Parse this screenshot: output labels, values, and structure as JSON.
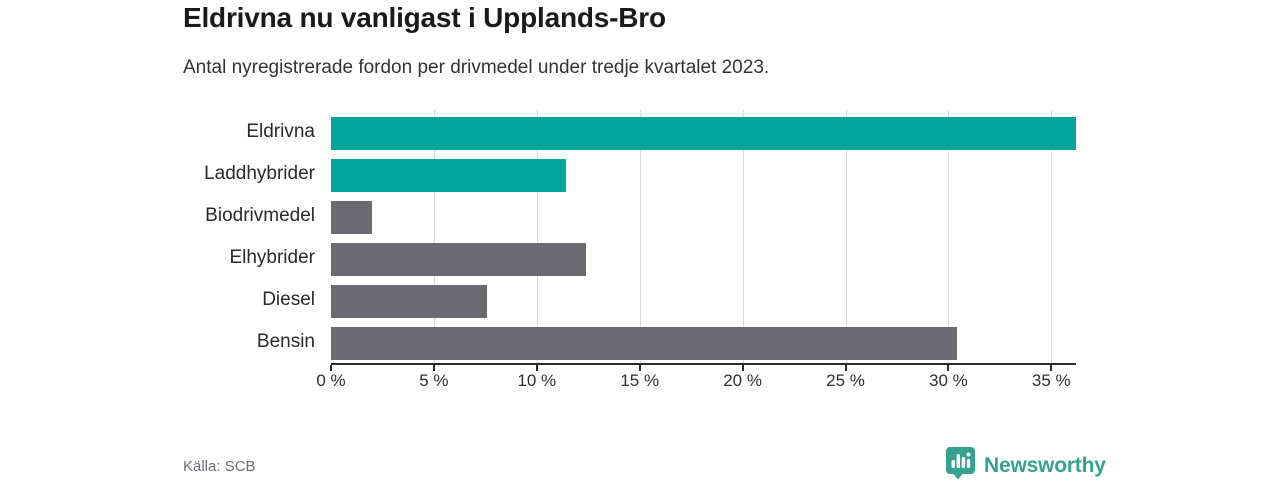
{
  "header": {
    "title": "Eldrivna nu vanligast i Upplands-Bro",
    "subtitle": "Antal nyregistrerade fordon per drivmedel under tredje kvartalet 2023."
  },
  "footer": {
    "source": "Källa: SCB",
    "brand": "Newsworthy"
  },
  "colors": {
    "highlight_teal": "#00a69a",
    "neutral_gray": "#6b6a70",
    "gridline": "#dcdcdc",
    "axis": "#2b2b2b",
    "logo_teal": "#35a190"
  },
  "chart_data": {
    "type": "bar",
    "orientation": "horizontal",
    "title": "Eldrivna nu vanligast i Upplands-Bro",
    "subtitle": "Antal nyregistrerade fordon per drivmedel under tredje kvartalet 2023.",
    "xlabel": "",
    "ylabel": "",
    "categories": [
      "Eldrivna",
      "Laddhybrider",
      "Biodrivmedel",
      "Elhybrider",
      "Diesel",
      "Bensin"
    ],
    "values": [
      36.2,
      11.4,
      2.0,
      12.4,
      7.6,
      30.4
    ],
    "unit": "%",
    "bar_colors": [
      "#00a69a",
      "#00a69a",
      "#6b6a70",
      "#6b6a70",
      "#6b6a70",
      "#6b6a70"
    ],
    "xlim": [
      0,
      36.2
    ],
    "xticks": [
      0,
      5,
      10,
      15,
      20,
      25,
      30,
      35
    ],
    "xtick_labels": [
      "0 %",
      "5 %",
      "10 %",
      "15 %",
      "20 %",
      "25 %",
      "30 %",
      "35 %"
    ],
    "grid": "vertical",
    "legend": "none"
  }
}
